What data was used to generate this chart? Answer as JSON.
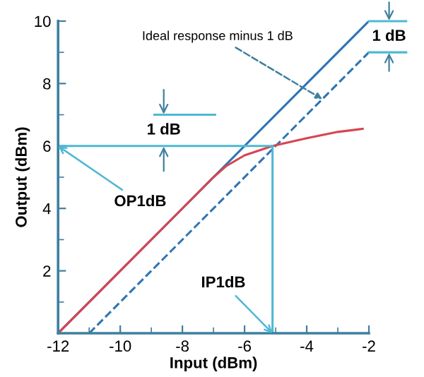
{
  "chart_data": {
    "type": "line",
    "xlabel": "Input (dBm)",
    "ylabel": "Output (dBm)",
    "xlim": [
      -12,
      -2
    ],
    "xticks": [
      -12,
      -10,
      -8,
      -6,
      -4,
      -2
    ],
    "ylim": [
      0,
      10
    ],
    "yticks": [
      {
        "value": 0,
        "label": null
      },
      2,
      4,
      6,
      8,
      10
    ],
    "grid": false,
    "legend": false,
    "series": [
      {
        "color": "#2e75b6",
        "x": [
          -12,
          -2
        ],
        "values": [
          0,
          10
        ],
        "line_style": "solid"
      },
      {
        "color": "#2e75b6",
        "x": [
          -11,
          -2
        ],
        "values": [
          0,
          9
        ],
        "line_style": "dashed"
      },
      {
        "color": "#d64550",
        "x": [
          -12,
          -7,
          -6.6,
          -6,
          -5.1,
          -4,
          -3,
          -2.2
        ],
        "values": [
          0,
          5,
          5.35,
          5.7,
          6,
          6.25,
          6.45,
          6.55
        ],
        "line_style": "solid"
      },
      {
        "color": "#4fb8d3",
        "x": [
          -12,
          -5.1
        ],
        "values": [
          6,
          6
        ],
        "line_style": "solid"
      },
      {
        "color": "#4fb8d3",
        "x": [
          -5.1,
          -5.1
        ],
        "values": [
          0,
          6
        ],
        "line_style": "solid"
      },
      {
        "color": "#4fb8d3",
        "x": [
          -8.9,
          -6.95
        ],
        "values": [
          7,
          7
        ],
        "line_style": "solid"
      }
    ],
    "annotations": [
      {
        "text": "Ideal response minus 1 dB",
        "x": -3.5,
        "y": 7.5
      },
      {
        "text": "OP1dB",
        "x": -12,
        "y": 6
      },
      {
        "text": "IP1dB",
        "x": -5.1,
        "y": 0
      },
      "1 dB",
      "1 dB"
    ]
  }
}
